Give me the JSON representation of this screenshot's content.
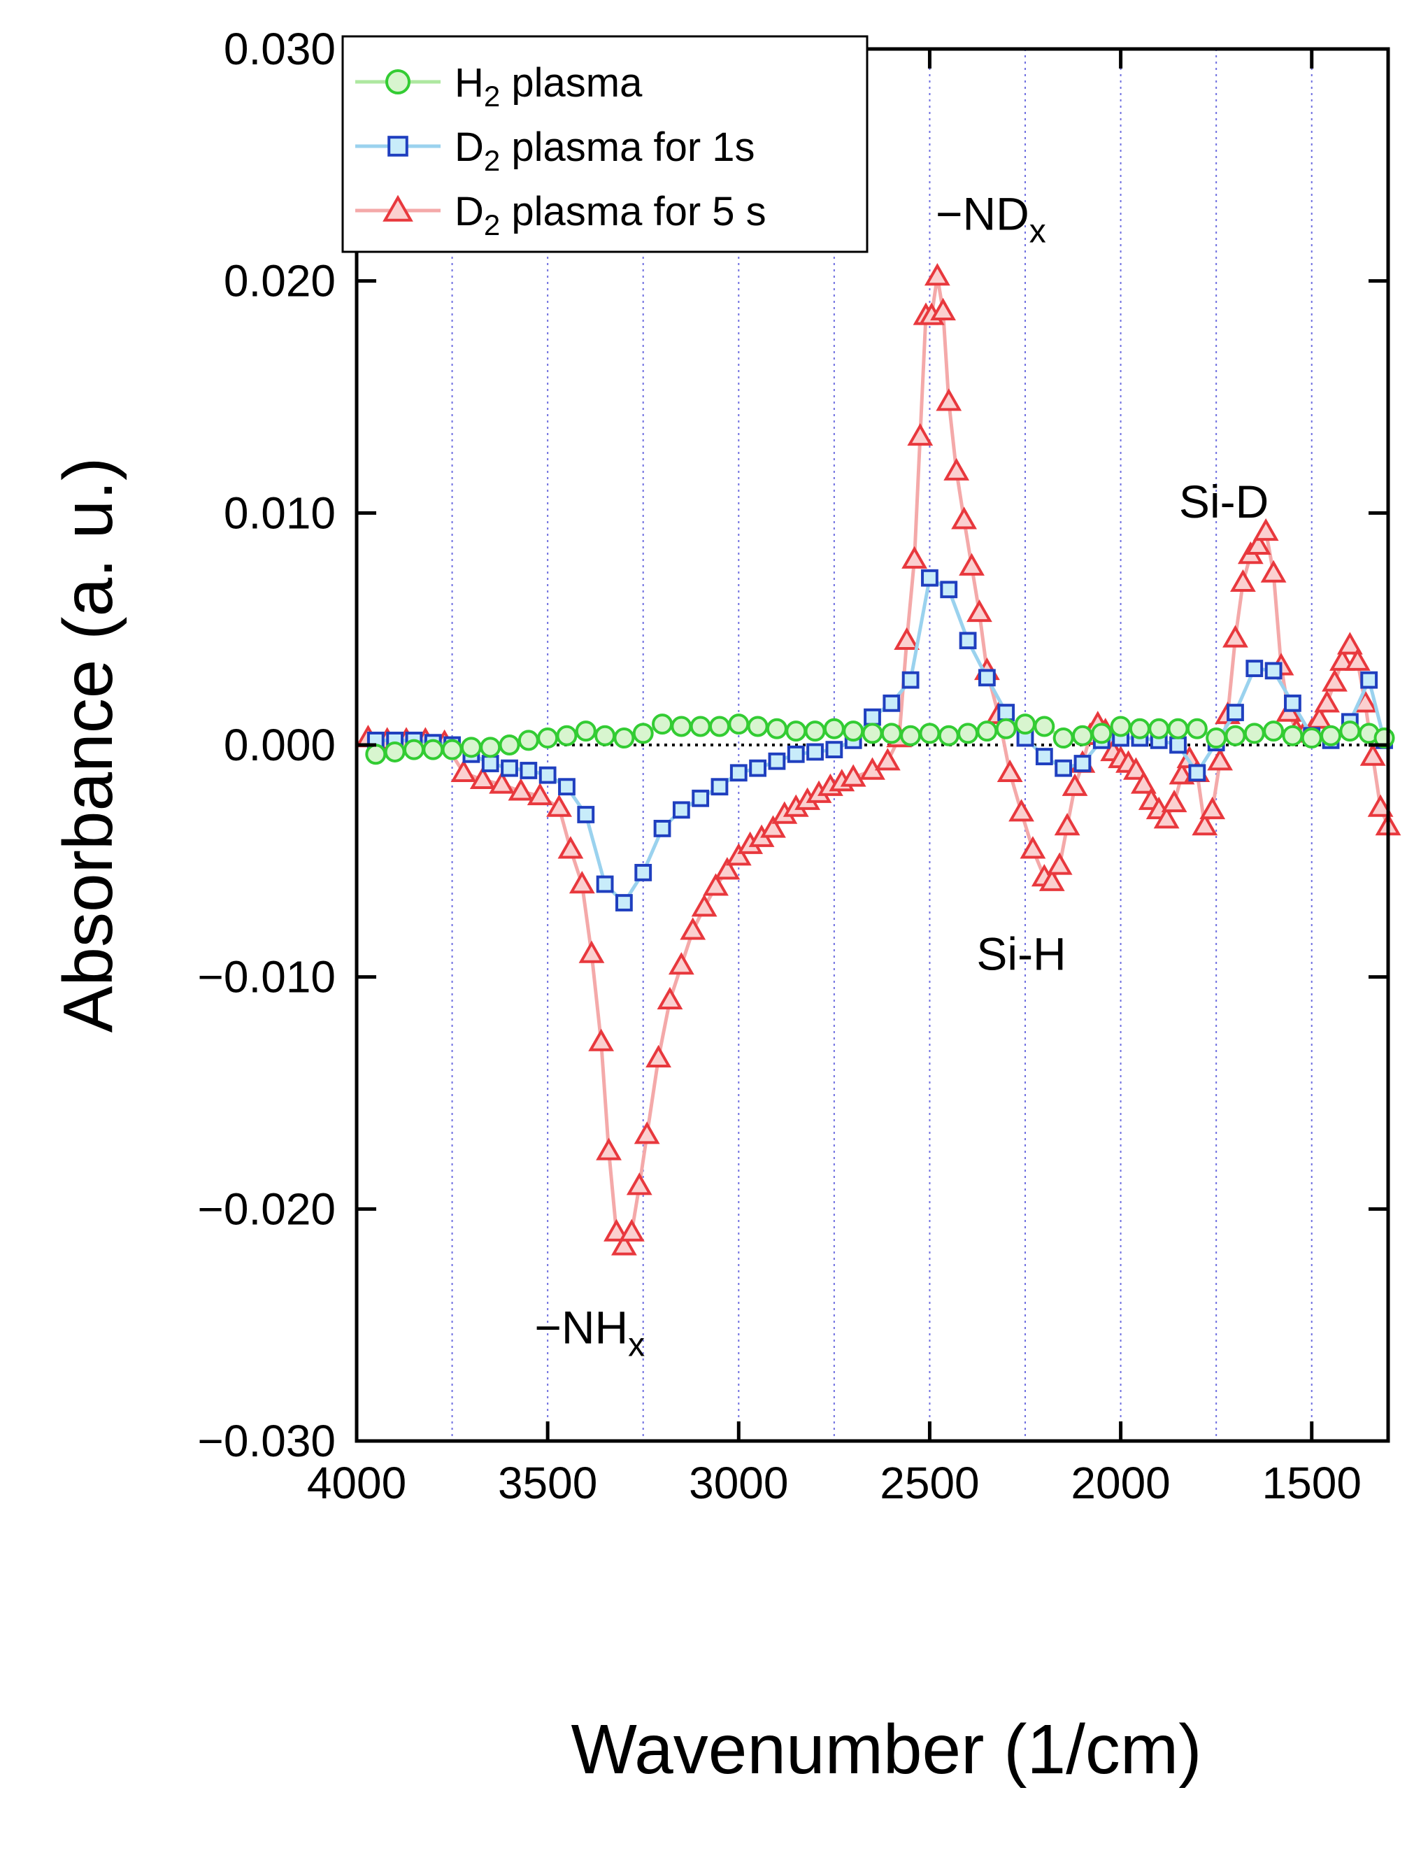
{
  "chart_data": {
    "type": "line",
    "xlabel": "Wavenumber (1/cm)",
    "ylabel": "Absorbance (a. u.)",
    "xlim": [
      4000,
      1300
    ],
    "ylim": [
      -0.03,
      0.03
    ],
    "x_reversed": true,
    "x_ticks": [
      4000,
      3500,
      3000,
      2500,
      2000,
      1500
    ],
    "x_tick_labels": [
      "4000",
      "3500",
      "3000",
      "2500",
      "2000",
      "1500"
    ],
    "y_ticks": [
      -0.03,
      -0.02,
      -0.01,
      0.0,
      0.01,
      0.02,
      0.03
    ],
    "y_tick_labels": [
      "−0.030",
      "−0.020",
      "−0.010",
      "0.000",
      "0.010",
      "0.020",
      "0.030"
    ],
    "vertical_gridlines": [
      4000,
      3750,
      3500,
      3250,
      3000,
      2750,
      2500,
      2250,
      2000,
      1750,
      1500
    ],
    "zero_line": true,
    "legend_position": "top-left",
    "series": [
      {
        "name": "H",
        "name_sub": "2",
        "name_rest": " plasma",
        "marker": "circle",
        "color": "#33cc33",
        "line_color": "#aee8a0",
        "x": [
          3950,
          3900,
          3850,
          3800,
          3750,
          3700,
          3650,
          3600,
          3550,
          3500,
          3450,
          3400,
          3350,
          3300,
          3250,
          3200,
          3150,
          3100,
          3050,
          3000,
          2950,
          2900,
          2850,
          2800,
          2750,
          2700,
          2650,
          2600,
          2550,
          2500,
          2450,
          2400,
          2350,
          2300,
          2250,
          2200,
          2150,
          2100,
          2050,
          2000,
          1950,
          1900,
          1850,
          1800,
          1750,
          1700,
          1650,
          1600,
          1550,
          1500,
          1450,
          1400,
          1350,
          1310
        ],
        "y": [
          -0.0004,
          -0.0003,
          -0.0002,
          -0.0002,
          -0.0002,
          -0.0001,
          -0.0001,
          0.0,
          0.0002,
          0.0003,
          0.0004,
          0.0006,
          0.0004,
          0.0003,
          0.0005,
          0.0009,
          0.0008,
          0.0008,
          0.0008,
          0.0009,
          0.0008,
          0.0007,
          0.0006,
          0.0006,
          0.0007,
          0.0006,
          0.0005,
          0.0005,
          0.0004,
          0.0005,
          0.0004,
          0.0005,
          0.0006,
          0.0007,
          0.0009,
          0.0008,
          0.0003,
          0.0004,
          0.0005,
          0.0008,
          0.0007,
          0.0007,
          0.0007,
          0.0007,
          0.0003,
          0.0004,
          0.0005,
          0.0006,
          0.0004,
          0.0003,
          0.0004,
          0.0006,
          0.0005,
          0.0003
        ]
      },
      {
        "name": "D",
        "name_sub": "2",
        "name_rest": " plasma for 1s",
        "marker": "square",
        "color": "#1f3fbf",
        "line_color": "#9ad2ee",
        "x": [
          3950,
          3900,
          3850,
          3800,
          3750,
          3700,
          3650,
          3600,
          3550,
          3500,
          3450,
          3400,
          3350,
          3300,
          3250,
          3200,
          3150,
          3100,
          3050,
          3000,
          2950,
          2900,
          2850,
          2800,
          2750,
          2700,
          2650,
          2600,
          2550,
          2500,
          2450,
          2400,
          2350,
          2300,
          2250,
          2200,
          2150,
          2100,
          2050,
          2000,
          1950,
          1900,
          1850,
          1800,
          1750,
          1700,
          1650,
          1600,
          1550,
          1500,
          1450,
          1400,
          1350,
          1310
        ],
        "y": [
          0.0002,
          0.0002,
          0.0002,
          0.0001,
          0.0,
          -0.0004,
          -0.0008,
          -0.001,
          -0.0011,
          -0.0013,
          -0.0018,
          -0.003,
          -0.006,
          -0.0068,
          -0.0055,
          -0.0036,
          -0.0028,
          -0.0023,
          -0.0018,
          -0.0012,
          -0.001,
          -0.0007,
          -0.0004,
          -0.0003,
          -0.0002,
          0.0002,
          0.0012,
          0.0018,
          0.0028,
          0.0072,
          0.0067,
          0.0045,
          0.0029,
          0.0014,
          0.0003,
          -0.0005,
          -0.001,
          -0.0008,
          0.0002,
          0.0003,
          0.0003,
          0.0002,
          0.0,
          -0.0012,
          0.0001,
          0.0014,
          0.0033,
          0.0032,
          0.0018,
          0.0004,
          0.0002,
          0.001,
          0.0028,
          0.0002
        ]
      },
      {
        "name": "D",
        "name_sub": "2",
        "name_rest": " plasma for 5 s",
        "marker": "triangle",
        "color": "#e8383d",
        "line_color": "#f4a9a9",
        "x": [
          3970,
          3920,
          3870,
          3820,
          3770,
          3720,
          3670,
          3620,
          3570,
          3520,
          3470,
          3440,
          3410,
          3385,
          3360,
          3340,
          3320,
          3300,
          3280,
          3260,
          3240,
          3210,
          3180,
          3150,
          3120,
          3090,
          3060,
          3030,
          3000,
          2970,
          2940,
          2910,
          2880,
          2850,
          2820,
          2790,
          2760,
          2730,
          2700,
          2650,
          2610,
          2580,
          2560,
          2540,
          2525,
          2510,
          2495,
          2480,
          2465,
          2450,
          2430,
          2410,
          2390,
          2370,
          2350,
          2320,
          2290,
          2260,
          2230,
          2200,
          2180,
          2160,
          2140,
          2120,
          2100,
          2080,
          2060,
          2040,
          2020,
          2000,
          1980,
          1960,
          1940,
          1920,
          1900,
          1880,
          1860,
          1840,
          1820,
          1800,
          1780,
          1760,
          1740,
          1720,
          1700,
          1680,
          1660,
          1640,
          1620,
          1600,
          1580,
          1560,
          1540,
          1520,
          1500,
          1480,
          1460,
          1440,
          1420,
          1400,
          1380,
          1360,
          1340,
          1320,
          1300
        ],
        "y": [
          0.0003,
          0.0002,
          0.0002,
          0.0002,
          0.0001,
          -0.0012,
          -0.0015,
          -0.0017,
          -0.002,
          -0.0022,
          -0.0027,
          -0.0045,
          -0.006,
          -0.009,
          -0.0128,
          -0.0175,
          -0.021,
          -0.0216,
          -0.021,
          -0.019,
          -0.0168,
          -0.0135,
          -0.011,
          -0.0095,
          -0.008,
          -0.007,
          -0.0061,
          -0.0054,
          -0.0048,
          -0.0043,
          -0.004,
          -0.0036,
          -0.003,
          -0.0027,
          -0.0024,
          -0.0021,
          -0.0018,
          -0.0016,
          -0.0014,
          -0.0011,
          -0.0007,
          0.0003,
          0.0045,
          0.008,
          0.0133,
          0.0185,
          0.0185,
          0.0202,
          0.0187,
          0.0148,
          0.0118,
          0.0097,
          0.0077,
          0.0057,
          0.0032,
          0.0013,
          -0.0012,
          -0.0029,
          -0.0045,
          -0.0057,
          -0.0059,
          -0.0052,
          -0.0035,
          -0.0018,
          -0.0008,
          0.0004,
          0.0009,
          0.0006,
          -0.0003,
          -0.0006,
          -0.0008,
          -0.0011,
          -0.0017,
          -0.0024,
          -0.0028,
          -0.0032,
          -0.0025,
          -0.0013,
          -0.0006,
          -0.0012,
          -0.0035,
          -0.0028,
          -0.0007,
          0.0013,
          0.0046,
          0.007,
          0.0082,
          0.0086,
          0.0092,
          0.0074,
          0.0034,
          0.0014,
          0.0006,
          0.0005,
          0.0006,
          0.0011,
          0.0018,
          0.0027,
          0.0036,
          0.0043,
          0.0036,
          0.0018,
          -0.0005,
          -0.0027,
          -0.0035
        ]
      }
    ],
    "annotations": [
      {
        "text": "−ND",
        "sub": "x",
        "x": 2340,
        "y": 0.0222
      },
      {
        "text": "Si-D",
        "x": 1730,
        "y": 0.0098
      },
      {
        "text": "Si-H",
        "x": 2260,
        "y": -0.0097
      },
      {
        "text": "−NH",
        "sub": "x",
        "x": 3390,
        "y": -0.0258
      }
    ]
  }
}
